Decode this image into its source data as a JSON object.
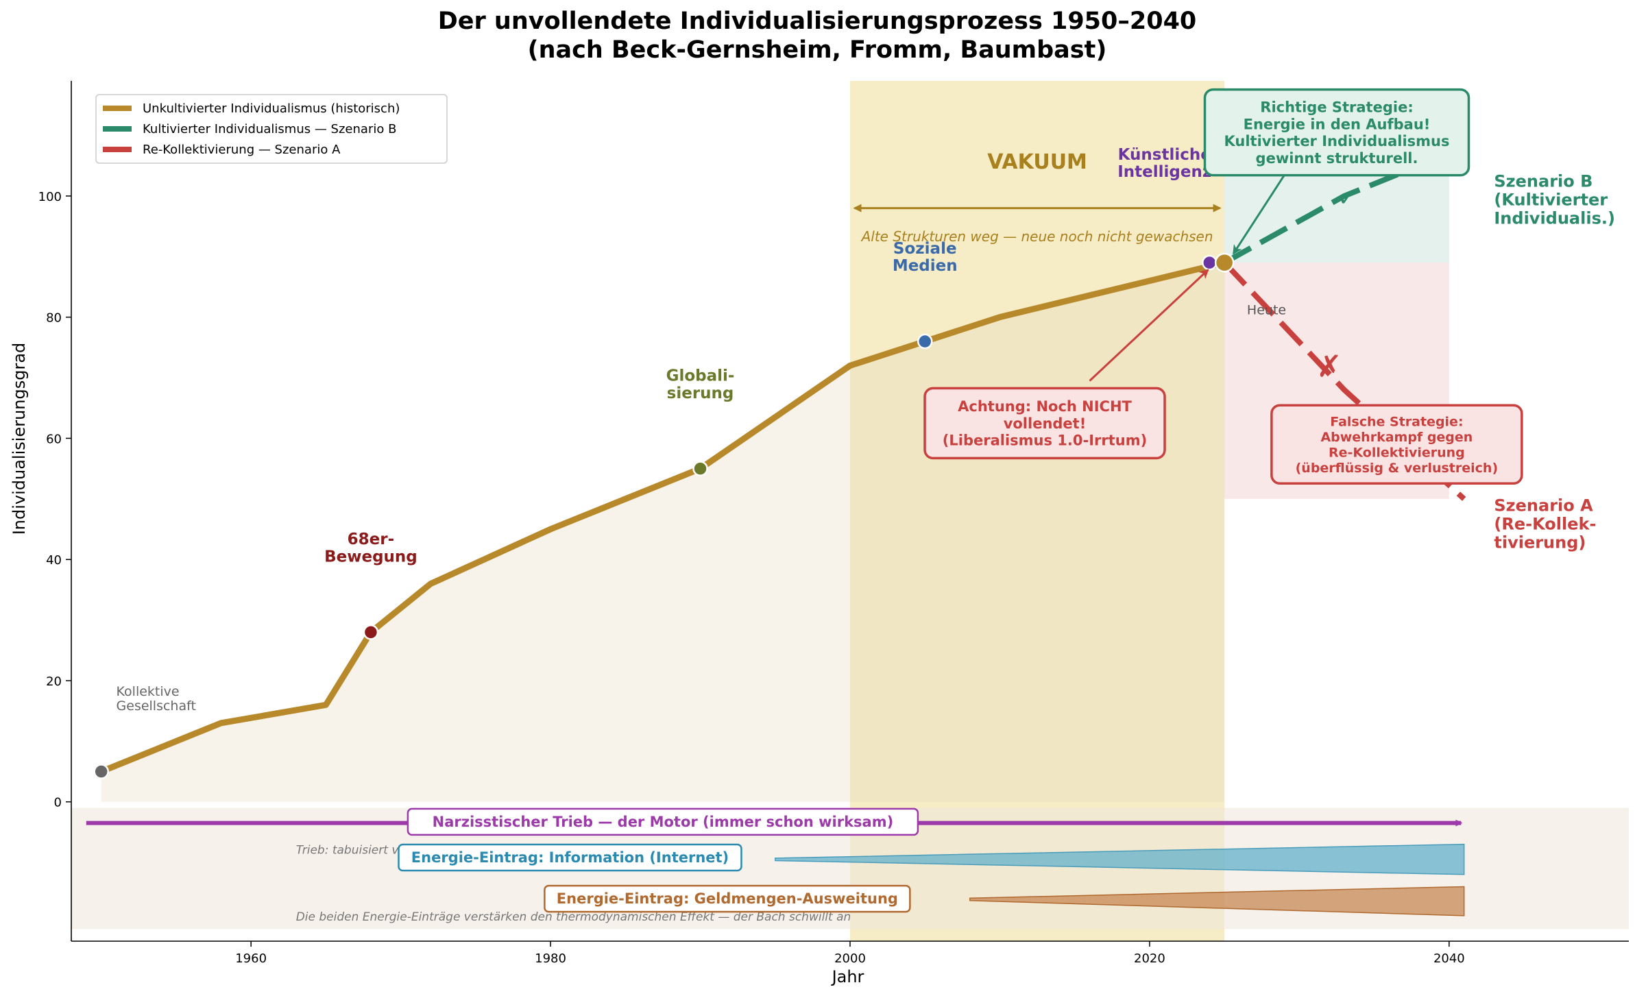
{
  "chart_data": {
    "type": "line",
    "title": [
      "Der unvollendete Individualisierungsprozess 1950–2040",
      "(nach Beck-Gernsheim, Fromm, Baumbast)"
    ],
    "xlabel": "Jahr",
    "ylabel": "Individualisierungsgrad",
    "xlim": [
      1948,
      2052
    ],
    "ylim": [
      -23,
      119
    ],
    "x_ticks": [
      1960,
      1980,
      2000,
      2020,
      2040
    ],
    "y_ticks": [
      0,
      20,
      40,
      60,
      80,
      100
    ],
    "grid": false,
    "legend_position": "top-left",
    "legend": [
      "Unkultivierter Individualismus (historisch)",
      "Kultivierter Individualismus — Szenario B",
      "Re-Kollektivierung — Szenario A"
    ],
    "colors": {
      "historical": "#b8892a",
      "scenario_b": "#2a8a6a",
      "scenario_a": "#c8413f",
      "vacuum": "#e9cf6d",
      "trieb": "#9b3aa8",
      "info": "#5aaccb",
      "money": "#c0793f"
    },
    "series": [
      {
        "name": "Unkultivierter Individualismus (historisch)",
        "x": [
          1950,
          1958,
          1965,
          1968,
          1972,
          1980,
          1990,
          2000,
          2005,
          2010,
          2025
        ],
        "y": [
          5,
          13,
          16,
          28,
          36,
          45,
          55,
          72,
          76,
          80,
          89
        ]
      },
      {
        "name": "Kultivierter Individualismus — Szenario B",
        "x": [
          2025,
          2033,
          2040
        ],
        "y": [
          89,
          100,
          107
        ]
      },
      {
        "name": "Re-Kollektivierung — Szenario A",
        "x": [
          2025,
          2033,
          2041
        ],
        "y": [
          89,
          68,
          50
        ]
      }
    ],
    "milestones": [
      {
        "label": "Kollektive\nGesellschaft",
        "x": 1950,
        "y": 5,
        "color": "#666666"
      },
      {
        "label": "68er-\nBewegung",
        "x": 1968,
        "y": 28,
        "color": "#8b1a1a"
      },
      {
        "label": "Globali-\nsierung",
        "x": 1990,
        "y": 55,
        "color": "#6b7a2a"
      },
      {
        "label": "Soziale\nMedien",
        "x": 2005,
        "y": 76,
        "color": "#3a6aaa"
      },
      {
        "label": "Künstliche\nIntelligenz",
        "x": 2024,
        "y": 89,
        "color": "#6a35a0"
      },
      {
        "label": "Heute",
        "x": 2025,
        "y": 89,
        "color": "#b8892a"
      }
    ],
    "vacuum": {
      "label": "VAKUUM",
      "subtitle": "Alte Strukturen weg — neue noch nicht gewachsen",
      "x_range": [
        2000,
        2025
      ]
    },
    "annotations": {
      "achtung": "Achtung: Noch NICHT\nvollendet!\n(Liberalismus 1.0-Irrtum)",
      "richtig": "Richtige Strategie:\nEnergie in den Aufbau!\nKultivierter Individualismus\ngewinnt strukturell.",
      "falsch": "Falsche Strategie:\nAbwehrkampf gegen\nRe-Kollektivierung\n(überflüssig & verlustreich)",
      "scenario_b_label": "Szenario B\n(Kultivierter\nIndividualis.)",
      "scenario_a_label": "Szenario A\n(Re-Kollek-\ntivierung)",
      "check_mark": "✓",
      "cross_mark": "✗"
    },
    "bottom_panel": {
      "trieb_label": "Narzisstischer Trieb — der Motor (immer schon wirksam)",
      "trieb_note": "Trieb: tabuisiert von extraktiven Eliten als Herrschaftsinstrument",
      "info_label": "Energie-Eintrag: Information (Internet)",
      "money_label": "Energie-Eintrag: Geldmengen-Ausweitung",
      "footer_note": "Die beiden Energie-Einträge verstärken den thermodynamischen Effekt — der Bach schwillt an"
    }
  }
}
